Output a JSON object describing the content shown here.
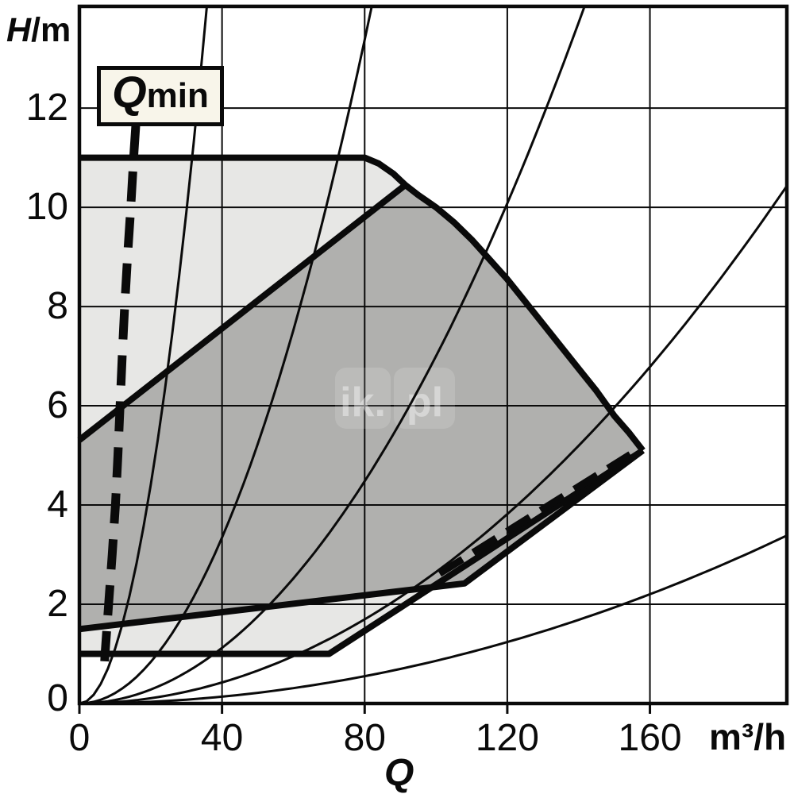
{
  "labels": {
    "y_axis_quantity": "H",
    "y_axis_unit": "/m",
    "x_axis_quantity": "Q",
    "x_axis_unit": "m³/h",
    "qmin_q": "Q",
    "qmin_sub": "min"
  },
  "watermark": {
    "part1": "ik.",
    "part2": "pl"
  },
  "colors": {
    "line": "#0a0a0a",
    "light_region_fill": "#e7e7e5",
    "dark_region_fill": "#b0b0ae",
    "qmin_box_bg": "#f8f5ea",
    "watermark_text": "rgba(255,255,255,0.40)",
    "watermark_block": "rgba(255,255,255,0.14)"
  },
  "chart_data": {
    "type": "area",
    "title": "",
    "x_axis": {
      "quantity": "Q",
      "unit": "m³/h",
      "ticks": [
        0,
        40,
        80,
        120,
        160
      ],
      "range": [
        0,
        198.4
      ],
      "grid_step": 40
    },
    "y_axis": {
      "label": "H/m",
      "ticks": [
        0,
        2,
        4,
        6,
        8,
        10,
        12
      ],
      "range": [
        0,
        14.05
      ],
      "grid_step": 2
    },
    "grid": true,
    "regions": {
      "light_envelope": {
        "name": "overall pump duty envelope",
        "top_edge": [
          [
            0,
            11
          ],
          [
            80,
            11
          ],
          [
            84,
            10.88
          ],
          [
            88,
            10.68
          ],
          [
            91.4,
            10.45
          ],
          [
            95,
            10.25
          ],
          [
            100,
            10.0
          ],
          [
            105,
            9.7
          ],
          [
            110,
            9.35
          ],
          [
            115,
            8.95
          ],
          [
            120,
            8.55
          ],
          [
            125,
            8.1
          ],
          [
            130,
            7.65
          ],
          [
            135,
            7.2
          ],
          [
            140,
            6.75
          ],
          [
            145,
            6.3
          ],
          [
            150,
            5.8
          ],
          [
            154,
            5.47
          ],
          [
            158,
            5.1
          ]
        ],
        "bottom_edge": [
          [
            0,
            1
          ],
          [
            70,
            1
          ],
          [
            158,
            5.1
          ]
        ]
      },
      "dark_envelope": {
        "name": "recommended duty range",
        "topleft_edge": [
          [
            0,
            5.31
          ],
          [
            91.4,
            10.45
          ]
        ],
        "bottom_edge": [
          [
            0,
            1.5
          ],
          [
            108,
            2.42
          ],
          [
            158,
            5.1
          ]
        ],
        "right_vertex": [
          158,
          5.1
        ]
      }
    },
    "system_curves": {
      "description": "thin parabolic system curves H = k * Q^2 from origin",
      "k_values": [
        0.011,
        0.00209,
        0.0007,
        0.000265,
        8.6e-05
      ]
    },
    "qmin_dashed_line": [
      [
        15.8,
        11.65
      ],
      [
        15.2,
        11
      ],
      [
        14.4,
        10
      ],
      [
        13.5,
        9
      ],
      [
        12.7,
        8
      ],
      [
        12.0,
        7
      ],
      [
        11.4,
        6
      ],
      [
        10.8,
        5
      ],
      [
        10.1,
        4
      ],
      [
        9.2,
        3
      ],
      [
        8.2,
        2
      ],
      [
        7.2,
        1
      ],
      [
        6.9,
        0.62
      ]
    ],
    "diagonal_dashed_line": [
      [
        101,
        2.62
      ],
      [
        154.5,
        5.02
      ]
    ]
  },
  "qmin_label_text": "Qmin"
}
